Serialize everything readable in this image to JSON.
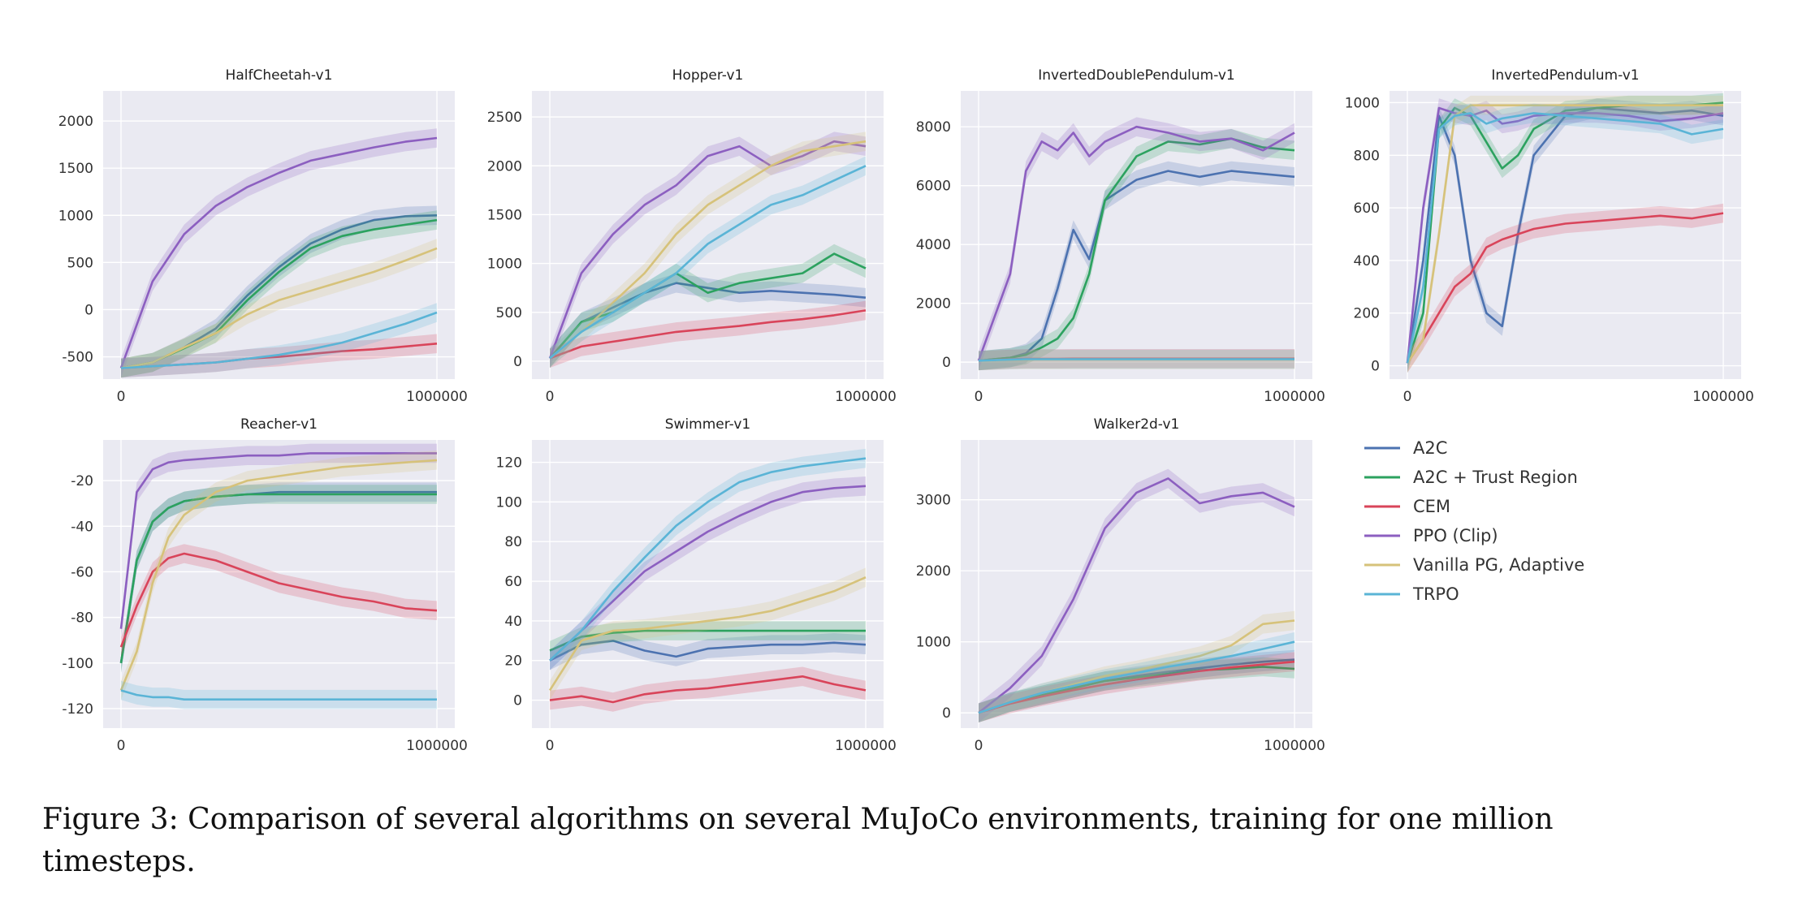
{
  "figure": {
    "caption_line1": "Figure 3:  Comparison of several algorithms on several MuJoCo environments, training for one million",
    "caption_line2": "timesteps."
  },
  "colors": {
    "A2C": "#4c72b0",
    "A2C + Trust Region": "#2ca25f",
    "CEM": "#d9445a",
    "PPO (Clip)": "#8c5fc0",
    "Vanilla PG, Adaptive": "#d6c27a",
    "TRPO": "#5ab4d6",
    "panel_bg": "#eaeaf2",
    "grid": "#ffffff"
  },
  "chart_data": [
    {
      "type": "line",
      "title": "HalfCheetah-v1",
      "xlim": [
        0,
        1000000
      ],
      "ylim": [
        -650,
        2250
      ],
      "xticks": [
        0,
        1000000
      ],
      "xtick_labels": [
        "0",
        "1000000"
      ],
      "yticks": [
        -500,
        0,
        500,
        1000,
        1500,
        2000
      ],
      "x": [
        0,
        100000,
        200000,
        300000,
        400000,
        500000,
        600000,
        700000,
        800000,
        900000,
        1000000
      ],
      "series": [
        {
          "name": "A2C",
          "values": [
            -620,
            -560,
            -400,
            -200,
            150,
            450,
            700,
            850,
            950,
            990,
            1000
          ]
        },
        {
          "name": "A2C + Trust Region",
          "values": [
            -620,
            -560,
            -410,
            -250,
            100,
            400,
            650,
            780,
            850,
            900,
            950
          ]
        },
        {
          "name": "CEM",
          "values": [
            -620,
            -600,
            -580,
            -560,
            -520,
            -500,
            -470,
            -440,
            -420,
            -390,
            -360
          ]
        },
        {
          "name": "PPO (Clip)",
          "values": [
            -620,
            300,
            800,
            1100,
            1300,
            1450,
            1580,
            1650,
            1720,
            1780,
            1820
          ]
        },
        {
          "name": "Vanilla PG, Adaptive",
          "values": [
            -620,
            -560,
            -400,
            -250,
            -50,
            100,
            200,
            300,
            400,
            520,
            650
          ]
        },
        {
          "name": "TRPO",
          "values": [
            -620,
            -600,
            -580,
            -560,
            -520,
            -480,
            -420,
            -350,
            -250,
            -150,
            -30
          ]
        }
      ]
    },
    {
      "type": "line",
      "title": "Hopper-v1",
      "xlim": [
        0,
        1000000
      ],
      "ylim": [
        -100,
        2700
      ],
      "xticks": [
        0,
        1000000
      ],
      "xtick_labels": [
        "0",
        "1000000"
      ],
      "yticks": [
        0,
        500,
        1000,
        1500,
        2000,
        2500
      ],
      "x": [
        0,
        100000,
        200000,
        300000,
        400000,
        500000,
        600000,
        700000,
        800000,
        900000,
        1000000
      ],
      "series": [
        {
          "name": "A2C",
          "values": [
            30,
            400,
            550,
            700,
            800,
            750,
            700,
            720,
            700,
            680,
            650
          ]
        },
        {
          "name": "A2C + Trust Region",
          "values": [
            30,
            400,
            500,
            700,
            900,
            700,
            800,
            850,
            900,
            1100,
            950
          ]
        },
        {
          "name": "CEM",
          "values": [
            30,
            150,
            200,
            250,
            300,
            330,
            360,
            400,
            430,
            470,
            520
          ]
        },
        {
          "name": "PPO (Clip)",
          "values": [
            30,
            900,
            1300,
            1600,
            1800,
            2100,
            2200,
            2000,
            2100,
            2250,
            2200
          ]
        },
        {
          "name": "Vanilla PG, Adaptive",
          "values": [
            30,
            300,
            600,
            900,
            1300,
            1600,
            1800,
            2000,
            2150,
            2200,
            2250
          ]
        },
        {
          "name": "TRPO",
          "values": [
            30,
            300,
            500,
            700,
            900,
            1200,
            1400,
            1600,
            1700,
            1850,
            2000
          ]
        }
      ]
    },
    {
      "type": "line",
      "title": "InvertedDoublePendulum-v1",
      "xlim": [
        0,
        1000000
      ],
      "ylim": [
        -300,
        9000
      ],
      "xticks": [
        0,
        1000000
      ],
      "xtick_labels": [
        "0",
        "1000000"
      ],
      "yticks": [
        0,
        2000,
        4000,
        6000,
        8000
      ],
      "x": [
        0,
        100000,
        150000,
        200000,
        250000,
        300000,
        350000,
        400000,
        500000,
        600000,
        700000,
        800000,
        900000,
        1000000
      ],
      "series": [
        {
          "name": "A2C",
          "values": [
            50,
            150,
            300,
            800,
            2500,
            4500,
            3500,
            5500,
            6200,
            6500,
            6300,
            6500,
            6400,
            6300
          ]
        },
        {
          "name": "A2C + Trust Region",
          "values": [
            50,
            150,
            250,
            500,
            800,
            1500,
            3000,
            5500,
            7000,
            7500,
            7400,
            7600,
            7300,
            7200
          ]
        },
        {
          "name": "CEM",
          "values": [
            50,
            100,
            110,
            110,
            110,
            120,
            120,
            120,
            120,
            120,
            120,
            120,
            120,
            120
          ]
        },
        {
          "name": "PPO (Clip)",
          "values": [
            50,
            3000,
            6500,
            7500,
            7200,
            7800,
            7000,
            7500,
            8000,
            7800,
            7500,
            7600,
            7200,
            7800
          ]
        },
        {
          "name": "Vanilla PG, Adaptive",
          "values": [
            50,
            80,
            90,
            90,
            90,
            90,
            90,
            90,
            90,
            90,
            90,
            90,
            90,
            90
          ]
        },
        {
          "name": "TRPO",
          "values": [
            50,
            90,
            100,
            100,
            100,
            100,
            100,
            100,
            100,
            100,
            100,
            100,
            100,
            100
          ]
        }
      ]
    },
    {
      "type": "line",
      "title": "InvertedPendulum-v1",
      "xlim": [
        0,
        1000000
      ],
      "ylim": [
        -20,
        1020
      ],
      "xticks": [
        0,
        1000000
      ],
      "xtick_labels": [
        "0",
        "1000000"
      ],
      "yticks": [
        0,
        200,
        400,
        600,
        800,
        1000
      ],
      "x": [
        0,
        50000,
        100000,
        150000,
        200000,
        250000,
        300000,
        350000,
        400000,
        500000,
        600000,
        700000,
        800000,
        900000,
        1000000
      ],
      "series": [
        {
          "name": "A2C",
          "values": [
            10,
            400,
            950,
            800,
            400,
            200,
            150,
            500,
            800,
            950,
            980,
            970,
            960,
            970,
            950
          ]
        },
        {
          "name": "A2C + Trust Region",
          "values": [
            10,
            200,
            900,
            980,
            950,
            850,
            750,
            800,
            900,
            970,
            980,
            990,
            990,
            990,
            1000
          ]
        },
        {
          "name": "CEM",
          "values": [
            10,
            100,
            200,
            300,
            350,
            450,
            480,
            500,
            520,
            540,
            550,
            560,
            570,
            560,
            580
          ]
        },
        {
          "name": "PPO (Clip)",
          "values": [
            10,
            600,
            980,
            960,
            950,
            970,
            920,
            930,
            950,
            960,
            960,
            950,
            930,
            940,
            960
          ]
        },
        {
          "name": "Vanilla PG, Adaptive",
          "values": [
            10,
            100,
            500,
            950,
            990,
            990,
            990,
            990,
            990,
            990,
            990,
            990,
            990,
            990,
            990
          ]
        },
        {
          "name": "TRPO",
          "values": [
            10,
            300,
            900,
            950,
            960,
            920,
            940,
            950,
            960,
            950,
            940,
            930,
            920,
            880,
            900
          ]
        }
      ]
    },
    {
      "type": "line",
      "title": "Reacher-v1",
      "xlim": [
        0,
        1000000
      ],
      "ylim": [
        -125,
        -5
      ],
      "xticks": [
        0,
        1000000
      ],
      "xtick_labels": [
        "0",
        "1000000"
      ],
      "yticks": [
        -120,
        -100,
        -80,
        -60,
        -40,
        -20
      ],
      "x": [
        0,
        50000,
        100000,
        150000,
        200000,
        300000,
        400000,
        500000,
        600000,
        700000,
        800000,
        900000,
        1000000
      ],
      "series": [
        {
          "name": "A2C",
          "values": [
            -100,
            -55,
            -38,
            -32,
            -29,
            -27,
            -26,
            -25,
            -25,
            -25,
            -25,
            -25,
            -25
          ]
        },
        {
          "name": "A2C + Trust Region",
          "values": [
            -100,
            -55,
            -38,
            -32,
            -29,
            -27,
            -26,
            -26,
            -26,
            -26,
            -26,
            -26,
            -26
          ]
        },
        {
          "name": "CEM",
          "values": [
            -93,
            -75,
            -60,
            -54,
            -52,
            -55,
            -60,
            -65,
            -68,
            -71,
            -73,
            -76,
            -77
          ]
        },
        {
          "name": "PPO (Clip)",
          "values": [
            -85,
            -25,
            -15,
            -12,
            -11,
            -10,
            -9,
            -9,
            -8,
            -8,
            -8,
            -8,
            -8
          ]
        },
        {
          "name": "Vanilla PG, Adaptive",
          "values": [
            -112,
            -95,
            -65,
            -45,
            -35,
            -25,
            -20,
            -18,
            -16,
            -14,
            -13,
            -12,
            -11
          ]
        },
        {
          "name": "TRPO",
          "values": [
            -112,
            -114,
            -115,
            -115,
            -116,
            -116,
            -116,
            -116,
            -116,
            -116,
            -116,
            -116,
            -116
          ]
        }
      ]
    },
    {
      "type": "line",
      "title": "Swimmer-v1",
      "xlim": [
        0,
        1000000
      ],
      "ylim": [
        -10,
        128
      ],
      "xticks": [
        0,
        1000000
      ],
      "xtick_labels": [
        "0",
        "1000000"
      ],
      "yticks": [
        0,
        20,
        40,
        60,
        80,
        100,
        120
      ],
      "x": [
        0,
        100000,
        200000,
        300000,
        400000,
        500000,
        600000,
        700000,
        800000,
        900000,
        1000000
      ],
      "series": [
        {
          "name": "A2C",
          "values": [
            20,
            28,
            30,
            25,
            22,
            26,
            27,
            28,
            28,
            29,
            28
          ]
        },
        {
          "name": "A2C + Trust Region",
          "values": [
            25,
            32,
            34,
            35,
            35,
            35,
            35,
            35,
            35,
            35,
            35
          ]
        },
        {
          "name": "CEM",
          "values": [
            0,
            2,
            -1,
            3,
            5,
            6,
            8,
            10,
            12,
            8,
            5
          ]
        },
        {
          "name": "PPO (Clip)",
          "values": [
            20,
            35,
            50,
            65,
            75,
            85,
            93,
            100,
            105,
            107,
            108
          ]
        },
        {
          "name": "Vanilla PG, Adaptive",
          "values": [
            5,
            30,
            35,
            36,
            38,
            40,
            42,
            45,
            50,
            55,
            62
          ]
        },
        {
          "name": "TRPO",
          "values": [
            20,
            35,
            55,
            72,
            88,
            100,
            110,
            115,
            118,
            120,
            122
          ]
        }
      ]
    },
    {
      "type": "line",
      "title": "Walker2d-v1",
      "xlim": [
        0,
        1000000
      ],
      "ylim": [
        -100,
        3750
      ],
      "xticks": [
        0,
        1000000
      ],
      "xtick_labels": [
        "0",
        "1000000"
      ],
      "yticks": [
        0,
        1000,
        2000,
        3000
      ],
      "x": [
        0,
        100000,
        200000,
        300000,
        400000,
        500000,
        600000,
        700000,
        800000,
        900000,
        1000000
      ],
      "series": [
        {
          "name": "A2C",
          "values": [
            0,
            150,
            250,
            350,
            450,
            520,
            580,
            630,
            680,
            720,
            750
          ]
        },
        {
          "name": "A2C + Trust Region",
          "values": [
            0,
            150,
            250,
            350,
            450,
            500,
            550,
            600,
            620,
            650,
            620
          ]
        },
        {
          "name": "CEM",
          "values": [
            0,
            130,
            230,
            320,
            400,
            470,
            530,
            590,
            640,
            680,
            720
          ]
        },
        {
          "name": "PPO (Clip)",
          "values": [
            0,
            350,
            800,
            1600,
            2600,
            3100,
            3300,
            2950,
            3050,
            3100,
            2900
          ]
        },
        {
          "name": "Vanilla PG, Adaptive",
          "values": [
            0,
            150,
            280,
            400,
            520,
            600,
            700,
            800,
            950,
            1250,
            1300
          ]
        },
        {
          "name": "TRPO",
          "values": [
            0,
            150,
            280,
            380,
            480,
            560,
            650,
            720,
            800,
            900,
            1000
          ]
        }
      ]
    }
  ],
  "legend": {
    "items": [
      "A2C",
      "A2C + Trust Region",
      "CEM",
      "PPO (Clip)",
      "Vanilla PG, Adaptive",
      "TRPO"
    ]
  }
}
